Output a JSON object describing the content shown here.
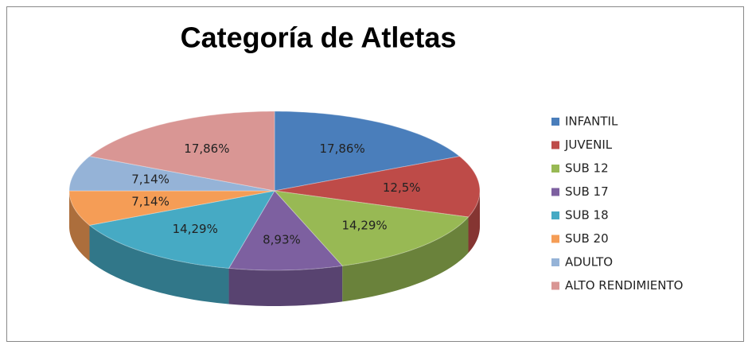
{
  "chart_data": {
    "type": "pie3d",
    "title": "Categoría de Atletas",
    "categories": [
      "INFANTIL",
      "JUVENIL",
      "SUB 12",
      "SUB 17",
      "SUB 18",
      "SUB 20",
      "ADULTO",
      "ALTO RENDIMIENTO"
    ],
    "values": [
      17.86,
      12.5,
      14.29,
      8.93,
      14.29,
      7.14,
      7.14,
      17.86
    ],
    "value_labels": [
      "17,86%",
      "12,5%",
      "14,29%",
      "8,93%",
      "14,29%",
      "7,14%",
      "7,14%",
      "17,86%"
    ],
    "colors": [
      "#4a7ebb",
      "#be4b48",
      "#98b954",
      "#7d60a0",
      "#46aac4",
      "#f59d56",
      "#95b3d7",
      "#d99694"
    ],
    "legend": "right"
  }
}
